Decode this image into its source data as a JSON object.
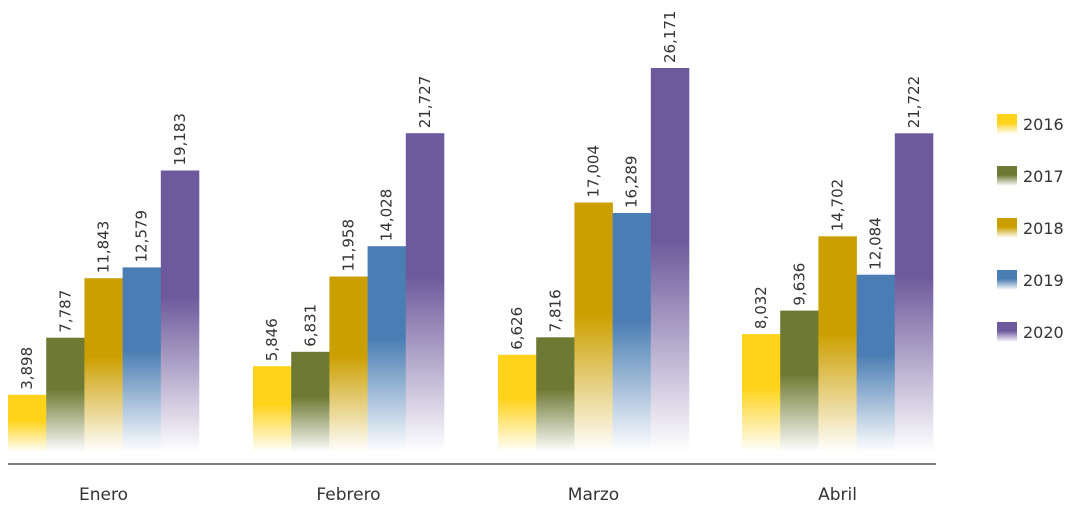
{
  "chart_data": {
    "type": "bar",
    "categories": [
      "Enero",
      "Febrero",
      "Marzo",
      "Abril"
    ],
    "series": [
      {
        "name": "2016",
        "values": [
          3898,
          5846,
          6626,
          8032
        ],
        "value_labels": [
          "3,898",
          "5,846",
          "6,626",
          "8,032"
        ],
        "color": "#ffd31a"
      },
      {
        "name": "2017",
        "values": [
          7787,
          6831,
          7816,
          9636
        ],
        "value_labels": [
          "7,787",
          "6,831",
          "7,816",
          "9,636"
        ],
        "color": "#6e7a33"
      },
      {
        "name": "2018",
        "values": [
          11843,
          11958,
          17004,
          14702
        ],
        "value_labels": [
          "11,843",
          "11,958",
          "17,004",
          "14,702"
        ],
        "color": "#cc9f00"
      },
      {
        "name": "2019",
        "values": [
          12579,
          14028,
          16289,
          12084
        ],
        "value_labels": [
          "12,579",
          "14,028",
          "16,289",
          "12,084"
        ],
        "color": "#4a7db3"
      },
      {
        "name": "2020",
        "values": [
          19183,
          21727,
          26171,
          21722
        ],
        "value_labels": [
          "19,183",
          "21,727",
          "26,171",
          "21,722"
        ],
        "color": "#6d5a9c"
      }
    ],
    "ylim": [
      0,
      26171
    ],
    "grid": false,
    "legend_position": "right",
    "title": "",
    "xlabel": "",
    "ylabel": ""
  }
}
